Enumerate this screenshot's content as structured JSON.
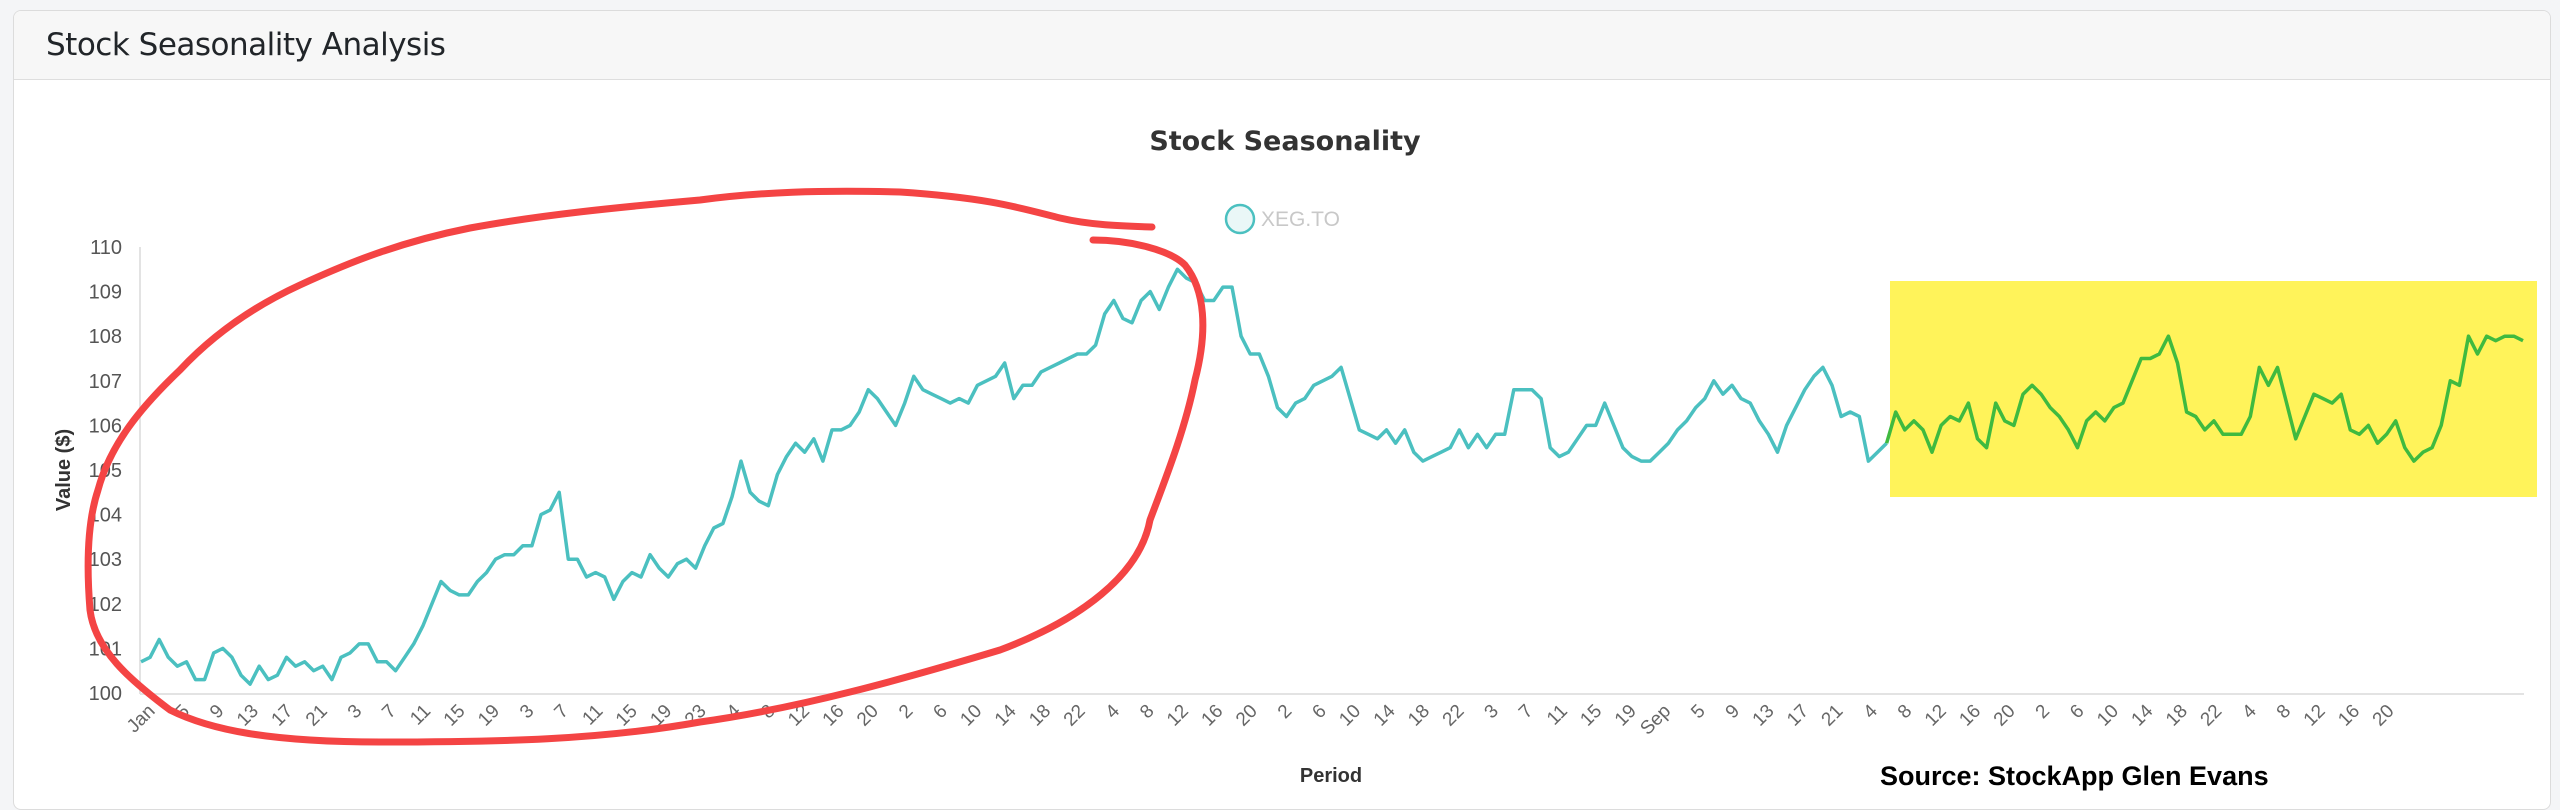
{
  "page": {
    "card_title": "Stock Seasonality Analysis",
    "source_note": "Source: StockApp Glen Evans"
  },
  "colors": {
    "series_line": "#4bc0c0",
    "highlight_line": "#3fba3f",
    "highlight_box": "#fff35a",
    "annotation_circle": "#f44444",
    "legend_fill": "#eaf7f7"
  },
  "chart_data": {
    "type": "line",
    "title": "Stock Seasonality",
    "xlabel": "Period",
    "ylabel": "Value ($)",
    "ylim": [
      100,
      110
    ],
    "yticks": [
      100,
      101,
      102,
      103,
      104,
      105,
      106,
      107,
      108,
      109,
      110
    ],
    "grid": false,
    "legend": {
      "position": "top",
      "entries": [
        "XEG.TO"
      ]
    },
    "x_tick_labels": [
      "Jan",
      "5",
      "9",
      "13",
      "17",
      "21",
      "3",
      "7",
      "11",
      "15",
      "19",
      "3",
      "7",
      "11",
      "15",
      "19",
      "23",
      "4",
      "8",
      "12",
      "16",
      "20",
      "2",
      "6",
      "10",
      "14",
      "18",
      "22",
      "4",
      "8",
      "12",
      "16",
      "20",
      "2",
      "6",
      "10",
      "14",
      "18",
      "22",
      "3",
      "7",
      "11",
      "15",
      "19",
      "Sep",
      "5",
      "9",
      "13",
      "17",
      "21",
      "4",
      "8",
      "12",
      "16",
      "20",
      "2",
      "6",
      "10",
      "14",
      "18",
      "22",
      "4",
      "8",
      "12",
      "16",
      "20"
    ],
    "series": [
      {
        "name": "XEG.TO",
        "values": [
          100.7,
          100.8,
          101.2,
          100.8,
          100.6,
          100.7,
          100.3,
          100.3,
          100.9,
          101.0,
          100.8,
          100.4,
          100.2,
          100.6,
          100.3,
          100.4,
          100.8,
          100.6,
          100.7,
          100.5,
          100.6,
          100.3,
          100.8,
          100.9,
          101.1,
          101.1,
          100.7,
          100.7,
          100.5,
          100.8,
          101.1,
          101.5,
          102.0,
          102.5,
          102.3,
          102.2,
          102.2,
          102.5,
          102.7,
          103.0,
          103.1,
          103.1,
          103.3,
          103.3,
          104.0,
          104.1,
          104.5,
          103.0,
          103.0,
          102.6,
          102.7,
          102.6,
          102.1,
          102.5,
          102.7,
          102.6,
          103.1,
          102.8,
          102.6,
          102.9,
          103.0,
          102.8,
          103.3,
          103.7,
          103.8,
          104.4,
          105.2,
          104.5,
          104.3,
          104.2,
          104.9,
          105.3,
          105.6,
          105.4,
          105.7,
          105.2,
          105.9,
          105.9,
          106.0,
          106.3,
          106.8,
          106.6,
          106.3,
          106.0,
          106.5,
          107.1,
          106.8,
          106.7,
          106.6,
          106.5,
          106.6,
          106.5,
          106.9,
          107.0,
          107.1,
          107.4,
          106.6,
          106.9,
          106.9,
          107.2,
          107.3,
          107.4,
          107.5,
          107.6,
          107.6,
          107.8,
          108.5,
          108.8,
          108.4,
          108.3,
          108.8,
          109.0,
          108.6,
          109.1,
          109.5,
          109.3,
          109.2,
          108.8,
          108.8,
          109.1,
          109.1,
          108.0,
          107.6,
          107.6,
          107.1,
          106.4,
          106.2,
          106.5,
          106.6,
          106.9,
          107.0,
          107.1,
          107.3,
          106.6,
          105.9,
          105.8,
          105.7,
          105.9,
          105.6,
          105.9,
          105.4,
          105.2,
          105.3,
          105.4,
          105.5,
          105.9,
          105.5,
          105.8,
          105.5,
          105.8,
          105.8,
          106.8,
          106.8,
          106.8,
          106.6,
          105.5,
          105.3,
          105.4,
          105.7,
          106.0,
          106.0,
          106.5,
          106.0,
          105.5,
          105.3,
          105.2,
          105.2,
          105.4,
          105.6,
          105.9,
          106.1,
          106.4,
          106.6,
          107.0,
          106.7,
          106.9,
          106.6,
          106.5,
          106.1,
          105.8,
          105.4,
          106.0,
          106.4,
          106.8,
          107.1,
          107.3,
          106.9,
          106.2,
          106.3,
          106.2,
          105.2,
          105.4,
          105.6
        ],
        "color": "#4bc0c0"
      },
      {
        "name": "XEG.TO (highlighted segment)",
        "values": [
          105.6,
          106.3,
          105.9,
          106.1,
          105.9,
          105.4,
          106.0,
          106.2,
          106.1,
          106.5,
          105.7,
          105.5,
          106.5,
          106.1,
          106.0,
          106.7,
          106.9,
          106.7,
          106.4,
          106.2,
          105.9,
          105.5,
          106.1,
          106.3,
          106.1,
          106.4,
          106.5,
          107.0,
          107.5,
          107.5,
          107.6,
          108.0,
          107.4,
          106.3,
          106.2,
          105.9,
          106.1,
          105.8,
          105.8,
          105.8,
          106.2,
          107.3,
          106.9,
          107.3,
          106.5,
          105.7,
          106.2,
          106.7,
          106.6,
          106.5,
          106.7,
          105.9,
          105.8,
          106.0,
          105.6,
          105.8,
          106.1,
          105.5,
          105.2,
          105.4,
          105.5,
          106.0,
          107.0,
          106.9,
          108.0,
          107.6,
          108.0,
          107.9,
          108.0,
          108.0,
          107.9
        ]
      }
    ]
  },
  "annotations": {
    "red_circle": "hand-drawn circle around Jan–Jun uptrend",
    "yellow_box": "highlight over Sep–Dec segment"
  }
}
